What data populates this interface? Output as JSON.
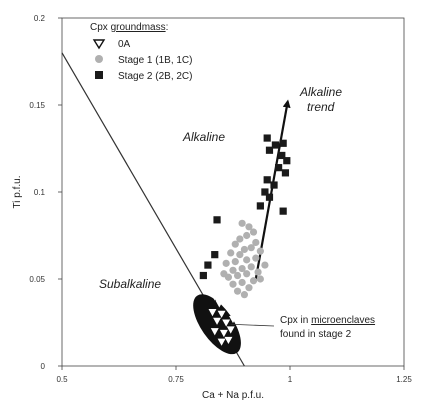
{
  "chart_data": {
    "type": "scatter",
    "xlabel": "Ca + Na p.f.u.",
    "ylabel": "Ti p.f.u.",
    "xlim": [
      0.5,
      1.25
    ],
    "ylim": [
      0,
      0.2
    ],
    "x_ticks": [
      {
        "value": 0.5,
        "label": "0.5"
      },
      {
        "value": 0.75,
        "label": "0.75"
      },
      {
        "value": 1,
        "label": "1"
      },
      {
        "value": 1.25,
        "label": "1.25"
      }
    ],
    "y_ticks": [
      {
        "value": 0,
        "label": "0"
      },
      {
        "value": 0.05,
        "label": "0.05"
      },
      {
        "value": 0.1,
        "label": "0.1"
      },
      {
        "value": 0.15,
        "label": "0.15"
      },
      {
        "value": 0.2,
        "label": "0.2"
      }
    ],
    "legend": {
      "title_prefix": "Cpx ",
      "title_underlined": "groundmass",
      "title_suffix": ":",
      "placement": "top-left"
    },
    "series": [
      {
        "name": "0A",
        "marker": "triangle-down-open",
        "color": "#ffffff",
        "points": [
          [
            0.835,
            0.04
          ],
          [
            0.85,
            0.042
          ],
          [
            0.865,
            0.044
          ],
          [
            0.845,
            0.036
          ],
          [
            0.86,
            0.037
          ],
          [
            0.875,
            0.039
          ],
          [
            0.83,
            0.031
          ],
          [
            0.85,
            0.03
          ],
          [
            0.87,
            0.032
          ],
          [
            0.885,
            0.034
          ],
          [
            0.84,
            0.026
          ],
          [
            0.86,
            0.025
          ],
          [
            0.875,
            0.027
          ],
          [
            0.89,
            0.029
          ],
          [
            0.835,
            0.02
          ],
          [
            0.855,
            0.019
          ],
          [
            0.87,
            0.021
          ],
          [
            0.85,
            0.014
          ],
          [
            0.865,
            0.015
          ],
          [
            0.845,
            0.046
          ]
        ]
      },
      {
        "name": "Stage 1 (1B, 1C)",
        "marker": "circle",
        "color": "#b0b0b0",
        "points": [
          [
            0.895,
            0.082
          ],
          [
            0.91,
            0.08
          ],
          [
            0.92,
            0.077
          ],
          [
            0.905,
            0.075
          ],
          [
            0.89,
            0.073
          ],
          [
            0.925,
            0.071
          ],
          [
            0.88,
            0.07
          ],
          [
            0.915,
            0.068
          ],
          [
            0.9,
            0.067
          ],
          [
            0.935,
            0.066
          ],
          [
            0.87,
            0.065
          ],
          [
            0.89,
            0.064
          ],
          [
            0.925,
            0.062
          ],
          [
            0.905,
            0.061
          ],
          [
            0.88,
            0.06
          ],
          [
            0.86,
            0.059
          ],
          [
            0.945,
            0.058
          ],
          [
            0.915,
            0.057
          ],
          [
            0.895,
            0.056
          ],
          [
            0.875,
            0.055
          ],
          [
            0.93,
            0.054
          ],
          [
            0.905,
            0.053
          ],
          [
            0.885,
            0.052
          ],
          [
            0.865,
            0.051
          ],
          [
            0.92,
            0.049
          ],
          [
            0.895,
            0.048
          ],
          [
            0.875,
            0.047
          ],
          [
            0.91,
            0.045
          ],
          [
            0.885,
            0.043
          ],
          [
            0.9,
            0.041
          ],
          [
            0.935,
            0.05
          ],
          [
            0.855,
            0.053
          ]
        ]
      },
      {
        "name": "Stage 2 (2B, 2C)",
        "marker": "square",
        "color": "#1a1a1a",
        "points": [
          [
            0.95,
            0.131
          ],
          [
            0.968,
            0.127
          ],
          [
            0.985,
            0.128
          ],
          [
            0.955,
            0.124
          ],
          [
            0.982,
            0.121
          ],
          [
            0.993,
            0.118
          ],
          [
            0.975,
            0.114
          ],
          [
            0.99,
            0.111
          ],
          [
            0.95,
            0.107
          ],
          [
            0.965,
            0.104
          ],
          [
            0.945,
            0.1
          ],
          [
            0.955,
            0.097
          ],
          [
            0.985,
            0.089
          ],
          [
            0.84,
            0.084
          ],
          [
            0.935,
            0.092
          ],
          [
            0.82,
            0.058
          ],
          [
            0.81,
            0.052
          ],
          [
            0.835,
            0.064
          ]
        ]
      }
    ],
    "field_labels": [
      "Alkaline",
      "Subalkaline"
    ],
    "trend_label": [
      "Alkaline",
      "trend"
    ],
    "trend_arrow": {
      "from": [
        0.925,
        0.05
      ],
      "to": [
        0.995,
        0.152
      ]
    },
    "divider_line": {
      "from": [
        0.5,
        0.18
      ],
      "to": [
        0.9,
        0.0
      ]
    },
    "enclave_field": {
      "center": [
        0.84,
        0.024
      ],
      "rx": 0.035,
      "ry": 0.02
    },
    "enclave_note": {
      "line1_prefix": "Cpx in ",
      "line1_underlined": "microenclaves",
      "line2": "found in stage 2"
    },
    "grid": false
  }
}
